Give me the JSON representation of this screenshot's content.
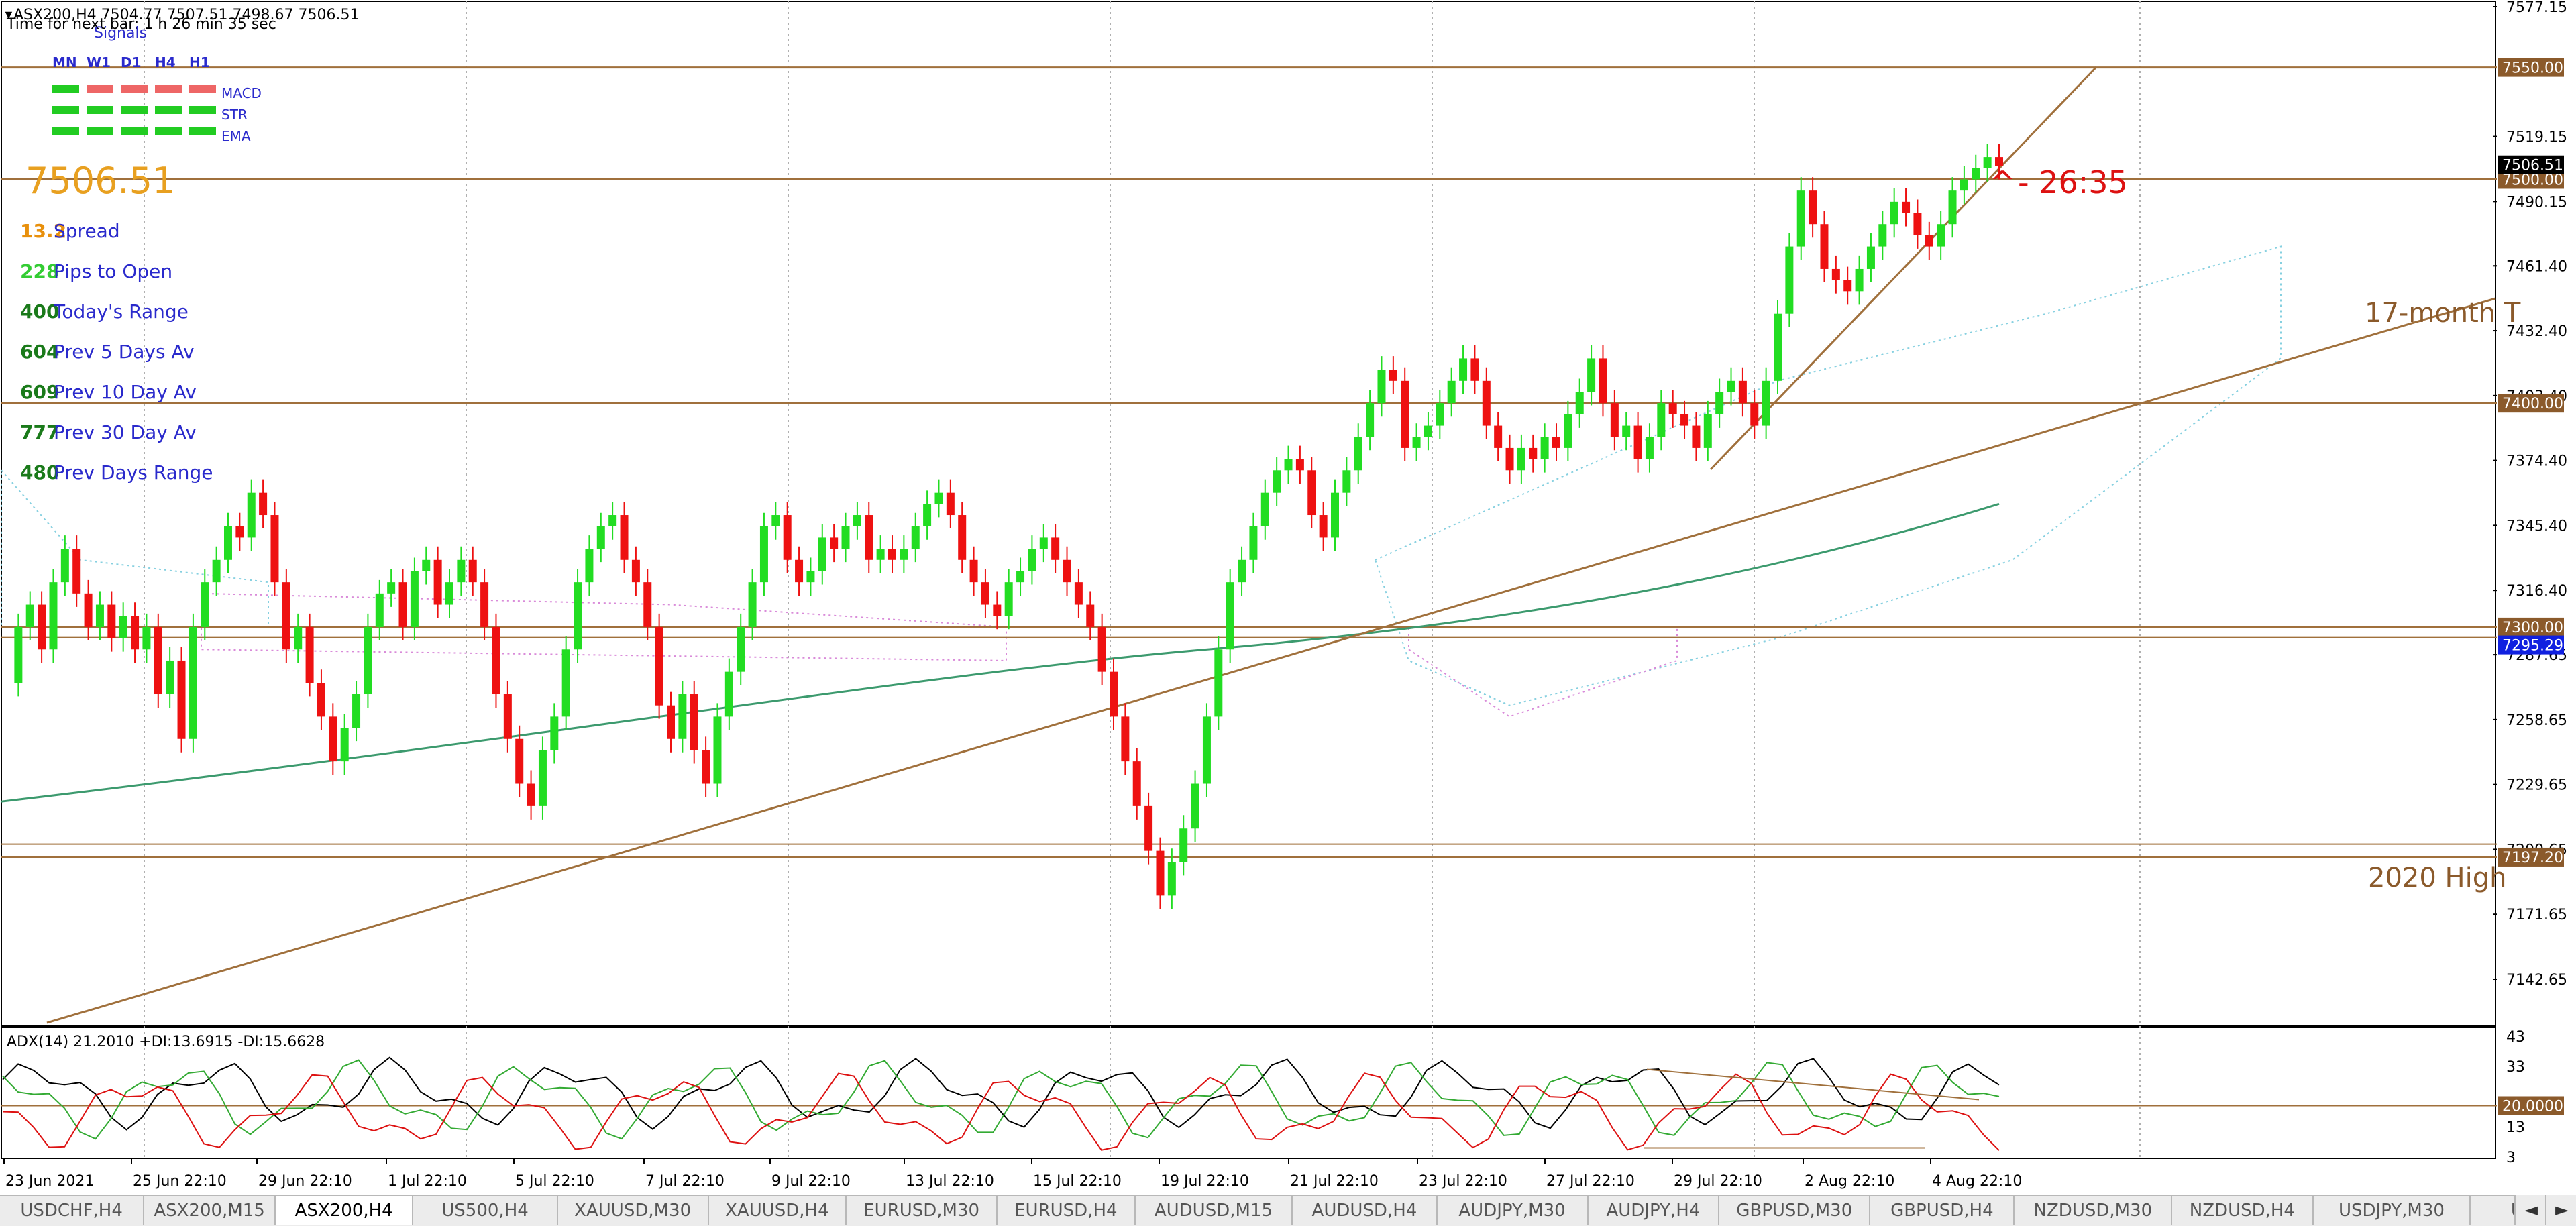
{
  "header": {
    "symbol_line": "ASX200,H4  7504.77 7507.51 7498.67 7506.51",
    "timer_line": "Time for next bar: 1 h 26 min 35 sec",
    "signals_title": "Signals",
    "timeframes": [
      "MN",
      "W1",
      "D1",
      "H4",
      "H1"
    ],
    "indicator_rows": [
      {
        "label": "MACD",
        "states": [
          "green",
          "red",
          "red",
          "red",
          "red"
        ]
      },
      {
        "label": "STR",
        "states": [
          "green",
          "green",
          "green",
          "green",
          "green"
        ]
      },
      {
        "label": "EMA",
        "states": [
          "green",
          "green",
          "green",
          "green",
          "green"
        ]
      }
    ],
    "big_price": "7506.51",
    "stats": [
      {
        "value": "13.2",
        "label": "Spread",
        "color": "#e8900c"
      },
      {
        "value": "228",
        "label": "Pips to Open",
        "color": "#33cc33"
      },
      {
        "value": "400",
        "label": "Today's Range",
        "color": "#1a7a1a"
      },
      {
        "value": "604",
        "label": "Prev 5 Days Av",
        "color": "#1a7a1a"
      },
      {
        "value": "609",
        "label": "Prev 10 Day Av",
        "color": "#1a7a1a"
      },
      {
        "value": "777",
        "label": "Prev 30 Day Av",
        "color": "#1a7a1a"
      },
      {
        "value": "480",
        "label": "Prev Days Range",
        "color": "#1a7a1a"
      }
    ]
  },
  "annotations": {
    "countdown": "- 26:35",
    "trend_label": "17-month T",
    "high_label": "2020 High"
  },
  "price_axis": {
    "ticks": [
      "7577.15",
      "7519.15",
      "7490.15",
      "7461.40",
      "7432.40",
      "7403.40",
      "7374.40",
      "7345.40",
      "7316.40",
      "7287.65",
      "7258.65",
      "7229.65",
      "7200.65",
      "7171.65",
      "7142.65"
    ],
    "level_badges": [
      {
        "text": "7550.00",
        "bg": "#8b5a2b"
      },
      {
        "text": "7500.00",
        "bg": "#8b5a2b"
      },
      {
        "text": "7400.00",
        "bg": "#8b5a2b"
      },
      {
        "text": "7300.00",
        "bg": "#8b5a2b"
      },
      {
        "text": "7197.20",
        "bg": "#8b5a2b"
      }
    ],
    "current_price_badge": "7506.51",
    "bid_badge": "7295.29"
  },
  "adx_panel": {
    "label": "ADX(14) 21.2010 +DI:13.6915 -DI:15.6628",
    "ticks": [
      "43",
      "33",
      "13",
      "3"
    ],
    "level_badge": "20.0000"
  },
  "time_axis": {
    "labels": [
      "23 Jun 2021",
      "25 Jun 22:10",
      "29 Jun 22:10",
      "1 Jul 22:10",
      "5 Jul 22:10",
      "7 Jul 22:10",
      "9 Jul 22:10",
      "13 Jul 22:10",
      "15 Jul 22:10",
      "19 Jul 22:10",
      "21 Jul 22:10",
      "23 Jul 22:10",
      "27 Jul 22:10",
      "29 Jul 22:10",
      "2 Aug 22:10",
      "4 Aug 22:10"
    ]
  },
  "tabs": [
    {
      "label": "USDCHF,H4",
      "active": false
    },
    {
      "label": "ASX200,M15",
      "active": false
    },
    {
      "label": "ASX200,H4",
      "active": true
    },
    {
      "label": "US500,H4",
      "active": false
    },
    {
      "label": "XAUUSD,M30",
      "active": false
    },
    {
      "label": "XAUUSD,H4",
      "active": false
    },
    {
      "label": "EURUSD,M30",
      "active": false
    },
    {
      "label": "EURUSD,H4",
      "active": false
    },
    {
      "label": "AUDUSD,M15",
      "active": false
    },
    {
      "label": "AUDUSD,H4",
      "active": false
    },
    {
      "label": "AUDJPY,M30",
      "active": false
    },
    {
      "label": "AUDJPY,H4",
      "active": false
    },
    {
      "label": "GBPUSD,M30",
      "active": false
    },
    {
      "label": "GBPUSD,H4",
      "active": false
    },
    {
      "label": "NZDUSD,M30",
      "active": false
    },
    {
      "label": "NZDUSD,H4",
      "active": false
    },
    {
      "label": "USDJPY,M30",
      "active": false
    },
    {
      "label": "US",
      "active": false
    }
  ],
  "tab_nav": {
    "prev": "◄",
    "next": "►"
  },
  "colors": {
    "bull": "#22dd22",
    "bear": "#ee1111",
    "level_line": "#a0703c",
    "trend_line": "#a0703c",
    "ema_line": "#3c9a6e",
    "cloud_up": "#86d0e0",
    "cloud_down": "#d98ad9",
    "adx_line": "#000000",
    "plus_di": "#33aa33",
    "minus_di": "#dd1111",
    "bid_badge_bg": "#1020e0",
    "current_badge_bg": "#000000"
  }
}
